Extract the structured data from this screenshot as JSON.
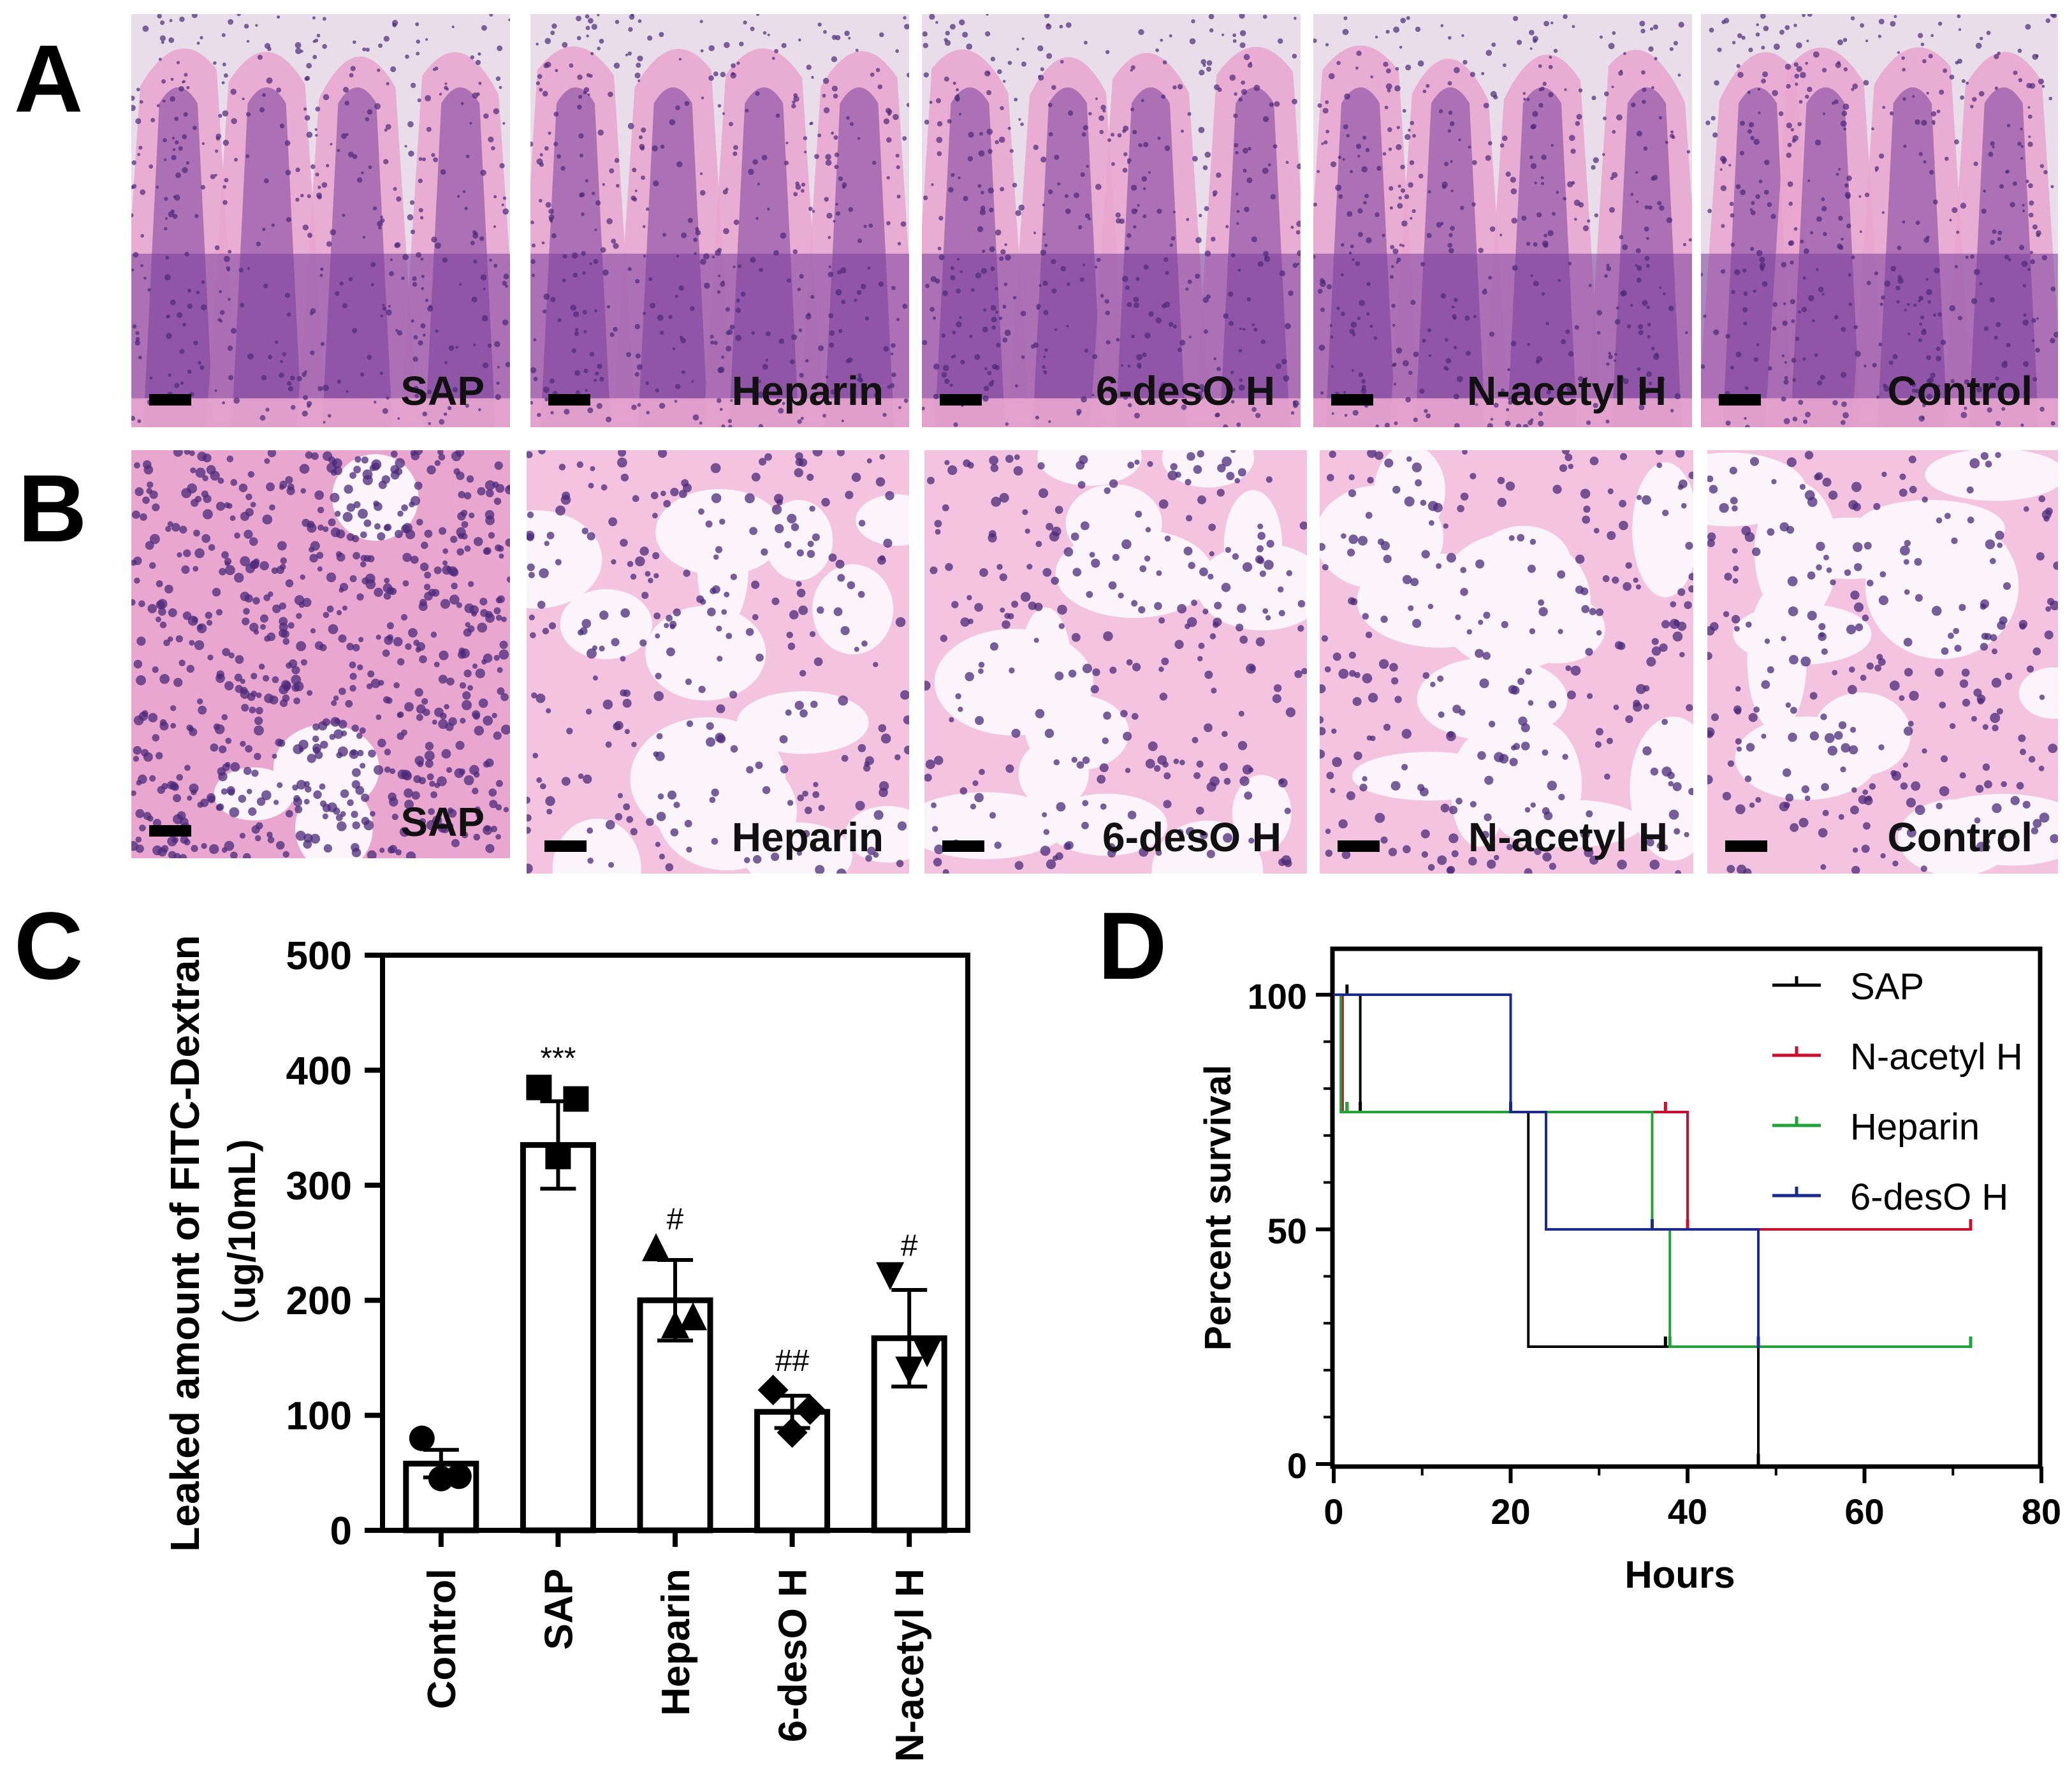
{
  "panel_letters": {
    "a": "A",
    "b": "B",
    "c": "C",
    "d": "D"
  },
  "row_a_labels": [
    "SAP",
    "Heparin",
    "6-desO H",
    "N-acetyl H",
    "Control"
  ],
  "row_b_labels": [
    "SAP",
    "Heparin",
    "6-desO H",
    "N-acetyl H",
    "Control"
  ],
  "colors": {
    "stain_pink": "#e9a6cf",
    "stain_purple": "#7a3f9a",
    "nuclei": "#4b2a7a",
    "alveoli_bg": "#fbf5fb",
    "sap": "#000000",
    "n_acetyl": "#c8102e",
    "heparin": "#22a33a",
    "desO": "#1a2a8f"
  },
  "chart_data": [
    {
      "type": "bar",
      "categories": [
        "Control",
        "SAP",
        "Heparin",
        "6-desO H",
        "N-acetyl H"
      ],
      "values": [
        58,
        335,
        200,
        103,
        167
      ],
      "errors": [
        12,
        38,
        35,
        14,
        42
      ],
      "points": [
        [
          80,
          47,
          45
        ],
        [
          385,
          375,
          325
        ],
        [
          245,
          185,
          178
        ],
        [
          122,
          105,
          85
        ],
        [
          222,
          155,
          140
        ]
      ],
      "markers": [
        "circle",
        "square",
        "triangle-up",
        "diamond",
        "triangle-down"
      ],
      "significance": [
        "",
        "***",
        "#",
        "##",
        "#"
      ],
      "ylabel": "Leaked amount of FITC-Dextran",
      "ylabel2": "（ug/10mL)",
      "yticks": [
        0,
        100,
        200,
        300,
        400,
        500
      ],
      "ylim": [
        0,
        500
      ],
      "grid": false
    },
    {
      "type": "line",
      "step": true,
      "xlabel": "Hours",
      "ylabel": "Percent survival",
      "xticks": [
        0,
        20,
        40,
        60,
        80
      ],
      "yticks": [
        0,
        50,
        100
      ],
      "xlim": [
        0,
        80
      ],
      "ylim": [
        0,
        110
      ],
      "legend_position": "top-right",
      "grid": false,
      "series": [
        {
          "name": "SAP",
          "color": "#000000",
          "x": [
            0,
            3,
            3,
            22,
            22,
            48,
            48
          ],
          "y": [
            100,
            100,
            75,
            75,
            25,
            25,
            0
          ],
          "censor_x": [
            1.5,
            3,
            20,
            37.5,
            48
          ]
        },
        {
          "name": "N-acetyl H",
          "color": "#c8102e",
          "x": [
            0,
            1,
            1,
            40,
            40,
            72
          ],
          "y": [
            100,
            100,
            75,
            75,
            50,
            50
          ],
          "censor_x": [
            1.5,
            37.5,
            40,
            72
          ]
        },
        {
          "name": "Heparin",
          "color": "#22a33a",
          "x": [
            0,
            0.8,
            0.8,
            36,
            36,
            38,
            38,
            72
          ],
          "y": [
            100,
            100,
            75,
            75,
            50,
            50,
            25,
            25
          ],
          "censor_x": [
            1.5,
            36,
            38,
            72
          ]
        },
        {
          "name": "6-desO H",
          "color": "#1a2a8f",
          "x": [
            0,
            20,
            20,
            24,
            24,
            48,
            48
          ],
          "y": [
            100,
            100,
            75,
            75,
            50,
            50,
            25
          ],
          "censor_x": [
            20,
            36,
            48
          ]
        }
      ]
    }
  ]
}
